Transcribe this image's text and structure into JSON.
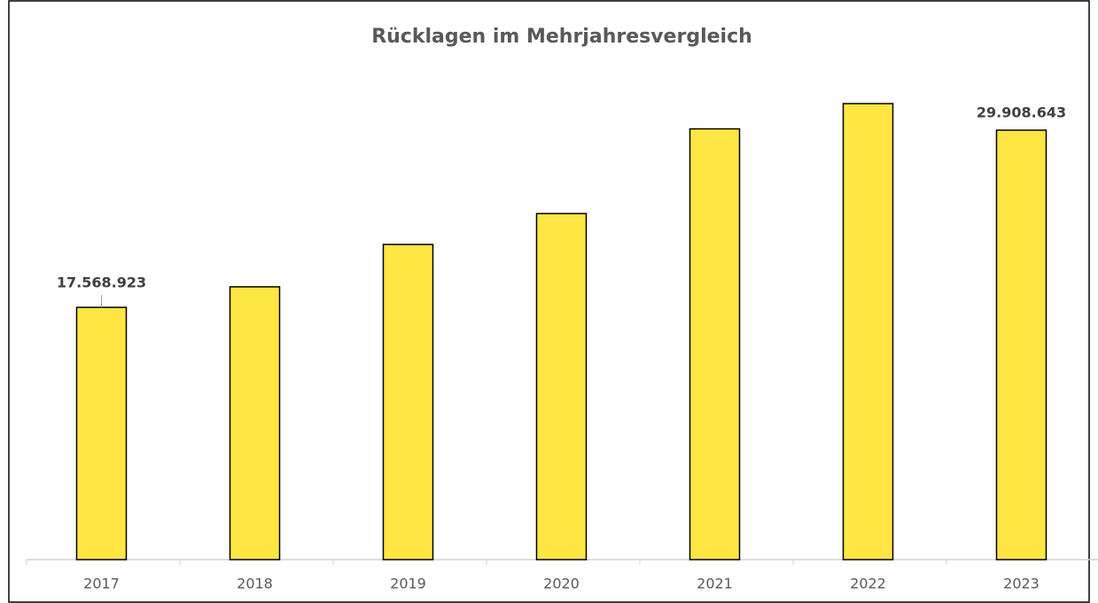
{
  "chart_data": {
    "type": "bar",
    "title": "Rücklagen im Mehrjahresvergleich",
    "categories": [
      "2017",
      "2018",
      "2019",
      "2020",
      "2021",
      "2022",
      "2023"
    ],
    "values": [
      17568923,
      19000000,
      21950000,
      24100000,
      30000000,
      31760000,
      29908643
    ],
    "value_labels": [
      "17.568.923",
      null,
      null,
      null,
      null,
      null,
      "29.908.643"
    ],
    "color": "#ffe643"
  }
}
